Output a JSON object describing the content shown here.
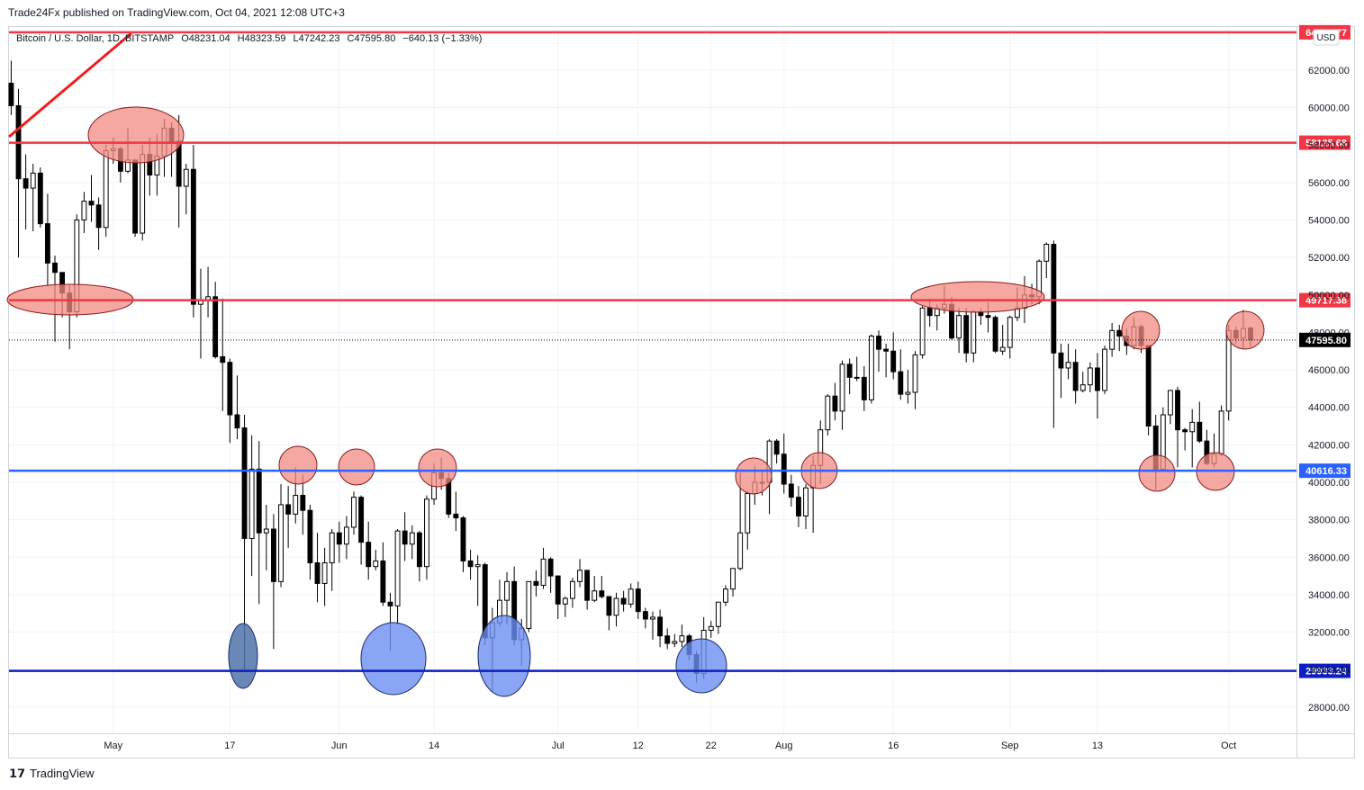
{
  "header": {
    "published": "Trade24Fx published on TradingView.com, Oct 04, 2021 12:08 UTC+3",
    "symbol": "Bitcoin / U.S. Dollar, 1D, BITSTAMP",
    "ohlc": [
      "O48231.04",
      "H48323.59",
      "L47242.23",
      "C47595.80",
      "−640.13 (−1.33%)"
    ],
    "currency": "USD",
    "footer": "TradingView"
  },
  "chart_data": {
    "type": "candlestick",
    "xlim": [
      -0.3,
      176.3
    ],
    "ylim": [
      26600,
      64300
    ],
    "xticks": [
      {
        "value": 14,
        "label": "May"
      },
      {
        "value": 30,
        "label": "17"
      },
      {
        "value": 45,
        "label": "Jun"
      },
      {
        "value": 58,
        "label": "14"
      },
      {
        "value": 75,
        "label": "Jul"
      },
      {
        "value": 86,
        "label": "12"
      },
      {
        "value": 96,
        "label": "22"
      },
      {
        "value": 106,
        "label": "Aug"
      },
      {
        "value": 121,
        "label": "16"
      },
      {
        "value": 137,
        "label": "Sep"
      },
      {
        "value": 149,
        "label": "13"
      },
      {
        "value": 167,
        "label": "Oct"
      }
    ],
    "yticks": [
      {
        "value": 28000,
        "label": "28000.00"
      },
      {
        "value": 30000,
        "label": "30000.00"
      },
      {
        "value": 32000,
        "label": "32000.00"
      },
      {
        "value": 34000,
        "label": "34000.00"
      },
      {
        "value": 36000,
        "label": "36000.00"
      },
      {
        "value": 38000,
        "label": "38000.00"
      },
      {
        "value": 40000,
        "label": "40000.00"
      },
      {
        "value": 42000,
        "label": "42000.00"
      },
      {
        "value": 44000,
        "label": "44000.00"
      },
      {
        "value": 46000,
        "label": "46000.00"
      },
      {
        "value": 48000,
        "label": "48000.00"
      },
      {
        "value": 50000,
        "label": "50000.00"
      },
      {
        "value": 52000,
        "label": "52000.00"
      },
      {
        "value": 54000,
        "label": "54000.00"
      },
      {
        "value": 56000,
        "label": "56000.00"
      },
      {
        "value": 58000,
        "label": "58000.00"
      },
      {
        "value": 60000,
        "label": "60000.00"
      },
      {
        "value": 62000,
        "label": "62000.00"
      }
    ],
    "grid": true,
    "up_color": "#ffffff",
    "down_color": "#000000",
    "levels": [
      {
        "value": 64016.77,
        "label": "64016.77",
        "color": "#f23645",
        "style": "solid"
      },
      {
        "value": 58125.68,
        "label": "58125.68",
        "color": "#f23645",
        "style": "solid"
      },
      {
        "value": 49717.38,
        "label": "49717.38",
        "color": "#f23645",
        "style": "solid"
      },
      {
        "value": 47595.8,
        "label": "47595.80",
        "color": "#000000",
        "style": "dotted"
      },
      {
        "value": 40616.33,
        "label": "40616.33",
        "color": "#2962ff",
        "style": "solid"
      },
      {
        "value": 29933.24,
        "label": "29933.24",
        "color": "#0d1fc4",
        "style": "solid"
      }
    ],
    "candles": [
      [
        61300,
        62500,
        59600,
        60100
      ],
      [
        60100,
        61000,
        52000,
        56200
      ],
      [
        56200,
        57500,
        53500,
        55700
      ],
      [
        55700,
        57000,
        53400,
        56500
      ],
      [
        56500,
        56800,
        53600,
        53800
      ],
      [
        53800,
        55400,
        50500,
        51700
      ],
      [
        51700,
        52100,
        47500,
        51200
      ],
      [
        51200,
        51200,
        48800,
        50100
      ],
      [
        50100,
        50500,
        47100,
        49100
      ],
      [
        49100,
        54300,
        48800,
        54000
      ],
      [
        54000,
        55500,
        53300,
        55000
      ],
      [
        55000,
        56400,
        53900,
        54800
      ],
      [
        54800,
        55200,
        52400,
        53600
      ],
      [
        53600,
        58000,
        53100,
        57700
      ],
      [
        57700,
        58400,
        57000,
        57800
      ],
      [
        57800,
        57900,
        56000,
        56600
      ],
      [
        56600,
        58900,
        56500,
        57200
      ],
      [
        57200,
        57200,
        53100,
        53300
      ],
      [
        53300,
        58000,
        52900,
        57500
      ],
      [
        57500,
        58400,
        55300,
        56400
      ],
      [
        56400,
        58600,
        55300,
        57400
      ],
      [
        57400,
        59400,
        56300,
        58900
      ],
      [
        58900,
        59200,
        56300,
        58200
      ],
      [
        58200,
        59600,
        53600,
        55800
      ],
      [
        55800,
        57000,
        54300,
        56700
      ],
      [
        56700,
        58000,
        48800,
        49500
      ],
      [
        49500,
        51400,
        46600,
        49700
      ],
      [
        49700,
        51500,
        48800,
        49900
      ],
      [
        49900,
        50700,
        46600,
        46700
      ],
      [
        46700,
        49800,
        43800,
        46400
      ],
      [
        46400,
        46600,
        42100,
        43600
      ],
      [
        43600,
        45700,
        42300,
        42900
      ],
      [
        42900,
        43600,
        30000,
        37000
      ],
      [
        37000,
        42500,
        35000,
        40700
      ],
      [
        40700,
        42200,
        33500,
        37300
      ],
      [
        37300,
        38800,
        35300,
        37500
      ],
      [
        37500,
        38300,
        31100,
        34700
      ],
      [
        34700,
        39900,
        34400,
        38800
      ],
      [
        38800,
        39800,
        36500,
        38300
      ],
      [
        38300,
        40800,
        37800,
        39300
      ],
      [
        39300,
        40400,
        37200,
        38500
      ],
      [
        38500,
        38800,
        34800,
        35700
      ],
      [
        35700,
        37300,
        33600,
        34600
      ],
      [
        34600,
        36500,
        33400,
        35700
      ],
      [
        35700,
        37500,
        34200,
        37300
      ],
      [
        37300,
        37900,
        35700,
        36700
      ],
      [
        36700,
        38200,
        35900,
        37600
      ],
      [
        37600,
        39500,
        37200,
        39200
      ],
      [
        39200,
        39300,
        35600,
        36800
      ],
      [
        36800,
        37900,
        34800,
        35500
      ],
      [
        35500,
        36400,
        35300,
        35800
      ],
      [
        35800,
        36800,
        33400,
        33600
      ],
      [
        33600,
        34100,
        31000,
        33400
      ],
      [
        33400,
        37500,
        32400,
        37400
      ],
      [
        37400,
        38400,
        35800,
        36700
      ],
      [
        36700,
        37700,
        35900,
        37300
      ],
      [
        37300,
        37400,
        34700,
        35500
      ],
      [
        35500,
        39300,
        34800,
        39100
      ],
      [
        39100,
        41000,
        38800,
        40500
      ],
      [
        40500,
        41300,
        39600,
        40200
      ],
      [
        40200,
        40500,
        38100,
        38300
      ],
      [
        38300,
        39500,
        37400,
        38100
      ],
      [
        38100,
        38200,
        35200,
        35800
      ],
      [
        35800,
        36400,
        34800,
        35500
      ],
      [
        35500,
        36100,
        33400,
        35600
      ],
      [
        35600,
        35700,
        31300,
        31700
      ],
      [
        31700,
        33300,
        28800,
        32500
      ],
      [
        32500,
        34800,
        32300,
        33700
      ],
      [
        33700,
        35200,
        32400,
        34700
      ],
      [
        34700,
        35500,
        31300,
        31600
      ],
      [
        31600,
        32700,
        30200,
        32200
      ],
      [
        32200,
        34700,
        32000,
        34700
      ],
      [
        34700,
        35300,
        33900,
        34500
      ],
      [
        34500,
        36500,
        34300,
        35900
      ],
      [
        35900,
        36000,
        34100,
        35000
      ],
      [
        35000,
        35000,
        32700,
        33500
      ],
      [
        33500,
        33900,
        32800,
        33800
      ],
      [
        33800,
        34900,
        33300,
        34700
      ],
      [
        34700,
        35900,
        34400,
        35300
      ],
      [
        35300,
        35300,
        33200,
        33700
      ],
      [
        33700,
        35000,
        33600,
        34200
      ],
      [
        34200,
        35000,
        33800,
        33900
      ],
      [
        33900,
        33900,
        32100,
        32900
      ],
      [
        32900,
        34100,
        32300,
        33800
      ],
      [
        33800,
        34200,
        33100,
        33500
      ],
      [
        33500,
        34600,
        33300,
        34300
      ],
      [
        34300,
        34700,
        32700,
        33100
      ],
      [
        33100,
        33300,
        32200,
        32700
      ],
      [
        32700,
        33100,
        31600,
        32800
      ],
      [
        32800,
        33200,
        31200,
        31800
      ],
      [
        31800,
        32200,
        31100,
        31400
      ],
      [
        31400,
        31900,
        31200,
        31500
      ],
      [
        31500,
        32400,
        31200,
        31800
      ],
      [
        31800,
        31900,
        30500,
        30800
      ],
      [
        30800,
        31000,
        29300,
        29800
      ],
      [
        29800,
        32800,
        29500,
        32100
      ],
      [
        32100,
        32600,
        31700,
        32300
      ],
      [
        32300,
        33600,
        31900,
        33600
      ],
      [
        33600,
        34500,
        33400,
        34300
      ],
      [
        34300,
        35400,
        33900,
        35400
      ],
      [
        35400,
        40500,
        35300,
        37300
      ],
      [
        37300,
        39500,
        36400,
        39400
      ],
      [
        39400,
        40900,
        38800,
        40000
      ],
      [
        40000,
        40600,
        39300,
        40000
      ],
      [
        40000,
        42300,
        38300,
        42200
      ],
      [
        42200,
        42300,
        41000,
        41500
      ],
      [
        41500,
        42600,
        39400,
        39900
      ],
      [
        39900,
        40400,
        38700,
        39200
      ],
      [
        39200,
        39800,
        37600,
        38200
      ],
      [
        38200,
        39900,
        37500,
        39700
      ],
      [
        39700,
        41400,
        37300,
        40900
      ],
      [
        40900,
        43300,
        39900,
        42800
      ],
      [
        42800,
        44700,
        42500,
        44600
      ],
      [
        44600,
        45300,
        43300,
        43800
      ],
      [
        43800,
        46500,
        42800,
        46300
      ],
      [
        46300,
        46600,
        44700,
        45600
      ],
      [
        45600,
        46700,
        45400,
        45600
      ],
      [
        45600,
        46200,
        43800,
        44400
      ],
      [
        44400,
        47900,
        44200,
        47800
      ],
      [
        47800,
        48100,
        45900,
        47100
      ],
      [
        47100,
        47400,
        45600,
        47000
      ],
      [
        47000,
        48000,
        45500,
        45900
      ],
      [
        45900,
        47100,
        44400,
        44700
      ],
      [
        44700,
        46000,
        44200,
        44800
      ],
      [
        44800,
        47000,
        43900,
        46800
      ],
      [
        46800,
        49400,
        46600,
        49300
      ],
      [
        49300,
        49800,
        48300,
        48900
      ],
      [
        48900,
        49500,
        48100,
        49300
      ],
      [
        49300,
        50500,
        49000,
        49500
      ],
      [
        49500,
        49900,
        47600,
        47700
      ],
      [
        47700,
        49300,
        46900,
        48900
      ],
      [
        48900,
        49300,
        46400,
        46900
      ],
      [
        46900,
        49200,
        46400,
        49100
      ],
      [
        49100,
        49300,
        48400,
        48900
      ],
      [
        48900,
        49600,
        48000,
        48800
      ],
      [
        48800,
        48900,
        46900,
        47000
      ],
      [
        47000,
        48400,
        46800,
        47200
      ],
      [
        47200,
        48900,
        46600,
        48800
      ],
      [
        48800,
        50400,
        48600,
        49300
      ],
      [
        49300,
        51000,
        48500,
        50000
      ],
      [
        50000,
        50600,
        49500,
        49900
      ],
      [
        49900,
        51900,
        49500,
        51800
      ],
      [
        51800,
        52800,
        50900,
        52700
      ],
      [
        52700,
        52900,
        42900,
        46900
      ],
      [
        46900,
        47400,
        44500,
        46100
      ],
      [
        46100,
        47400,
        45500,
        46400
      ],
      [
        46400,
        47100,
        44200,
        44900
      ],
      [
        44900,
        45900,
        44800,
        45200
      ],
      [
        45200,
        46400,
        44800,
        46100
      ],
      [
        46100,
        46900,
        43400,
        44900
      ],
      [
        44900,
        47300,
        44700,
        47100
      ],
      [
        47100,
        48500,
        46700,
        48100
      ],
      [
        48100,
        48400,
        47000,
        47800
      ],
      [
        47800,
        48200,
        46800,
        47300
      ],
      [
        47300,
        48800,
        47100,
        48300
      ],
      [
        48300,
        48400,
        46900,
        47300
      ],
      [
        47300,
        47300,
        42500,
        43000
      ],
      [
        43000,
        43600,
        39600,
        40700
      ],
      [
        40700,
        44000,
        40600,
        43600
      ],
      [
        43600,
        44900,
        43100,
        44900
      ],
      [
        44900,
        45100,
        40800,
        42800
      ],
      [
        42800,
        42900,
        41700,
        42700
      ],
      [
        42700,
        43900,
        40800,
        43200
      ],
      [
        43200,
        44300,
        42100,
        42200
      ],
      [
        42200,
        42800,
        40900,
        41000
      ],
      [
        41000,
        42600,
        40800,
        41500
      ],
      [
        41500,
        44100,
        41400,
        43800
      ],
      [
        43800,
        48400,
        43300,
        48100
      ],
      [
        48100,
        48300,
        47400,
        47700
      ],
      [
        47700,
        49200,
        47100,
        48200
      ],
      [
        48231.04,
        48323.59,
        47242.23,
        47595.8
      ]
    ]
  }
}
